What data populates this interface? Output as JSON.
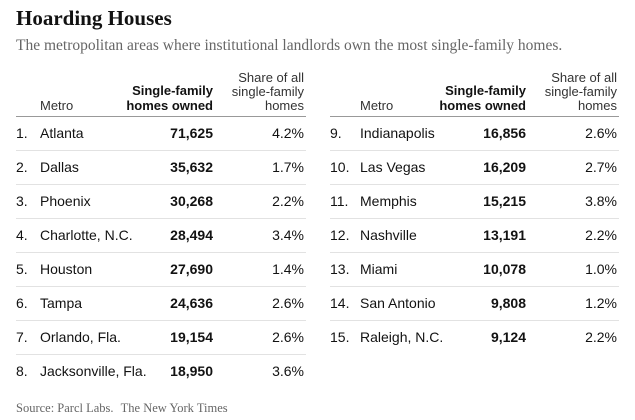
{
  "title": "Hoarding Houses",
  "subtitle": "The metropolitan areas where institutional landlords own the most single-family homes.",
  "columns": {
    "metro": "Metro",
    "homes_line1": "Single-family",
    "homes_line2": "homes owned",
    "share_line1": "Share of all",
    "share_line2": "single-family",
    "share_line3": "homes"
  },
  "rows": [
    {
      "rank": "1.",
      "metro": "Atlanta",
      "homes": "71,625",
      "share": "4.2%"
    },
    {
      "rank": "2.",
      "metro": "Dallas",
      "homes": "35,632",
      "share": "1.7%"
    },
    {
      "rank": "3.",
      "metro": "Phoenix",
      "homes": "30,268",
      "share": "2.2%"
    },
    {
      "rank": "4.",
      "metro": "Charlotte, N.C.",
      "homes": "28,494",
      "share": "3.4%"
    },
    {
      "rank": "5.",
      "metro": "Houston",
      "homes": "27,690",
      "share": "1.4%"
    },
    {
      "rank": "6.",
      "metro": "Tampa",
      "homes": "24,636",
      "share": "2.6%"
    },
    {
      "rank": "7.",
      "metro": "Orlando, Fla.",
      "homes": "19,154",
      "share": "2.6%"
    },
    {
      "rank": "8.",
      "metro": "Jacksonville, Fla.",
      "homes": "18,950",
      "share": "3.6%"
    },
    {
      "rank": "9.",
      "metro": "Indianapolis",
      "homes": "16,856",
      "share": "2.6%"
    },
    {
      "rank": "10.",
      "metro": "Las Vegas",
      "homes": "16,209",
      "share": "2.7%"
    },
    {
      "rank": "11.",
      "metro": "Memphis",
      "homes": "15,215",
      "share": "3.8%"
    },
    {
      "rank": "12.",
      "metro": "Nashville",
      "homes": "13,191",
      "share": "2.2%"
    },
    {
      "rank": "13.",
      "metro": "Miami",
      "homes": "10,078",
      "share": "1.0%"
    },
    {
      "rank": "14.",
      "metro": "San Antonio",
      "homes": "9,808",
      "share": "1.2%"
    },
    {
      "rank": "15.",
      "metro": "Raleigh, N.C.",
      "homes": "9,124",
      "share": "2.2%"
    }
  ],
  "source": "Source: Parcl Labs.",
  "credit": "The New York Times"
}
